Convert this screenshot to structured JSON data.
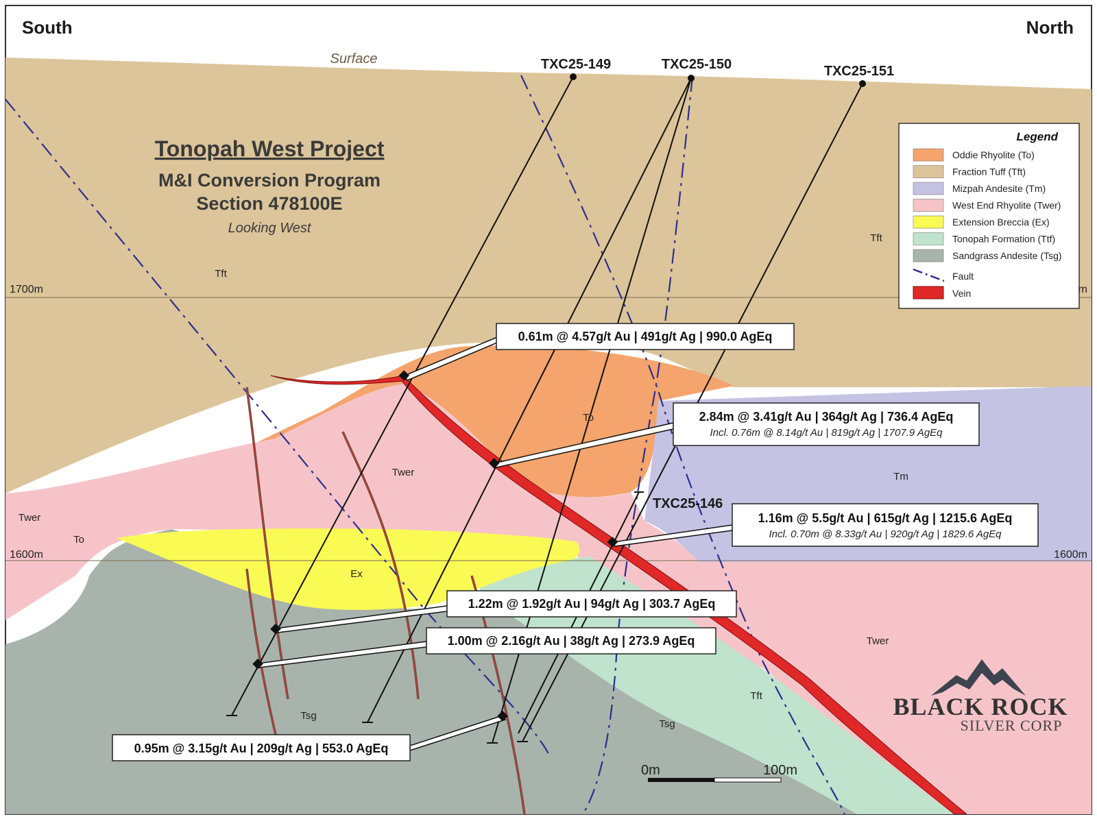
{
  "header": {
    "south": "South",
    "north": "North"
  },
  "surface_label": "Surface",
  "title": {
    "line1": "Tonopah West Project",
    "line2": "M&I Conversion Program",
    "line3": "Section 478100E",
    "line4": "Looking West"
  },
  "elevations": {
    "upper": "1700m",
    "lower": "1600m",
    "lower_right": "1600m",
    "upper_right_partial": "m"
  },
  "drillholes": [
    "TXC25-149",
    "TXC25-150",
    "TXC25-151",
    "TXC25-146"
  ],
  "units": {
    "tft_left": "Tft",
    "tft_right": "Tft",
    "tft_lower": "Tft",
    "to_center": "To",
    "to_left": "To",
    "twer_left": "Twer",
    "twer_center": "Twer",
    "twer_right": "Twer",
    "tm": "Tm",
    "ex": "Ex",
    "tsg_left": "Tsg",
    "tsg_center": "Tsg"
  },
  "callouts": [
    {
      "main": "0.61m @ 4.57g/t Au  |  491g/t  Ag  |  990.0 AgEq",
      "sub": ""
    },
    {
      "main": "2.84m @ 3.41g/t Au  |  364g/t Ag  |  736.4 AgEq",
      "sub": "Incl. 0.76m @ 8.14g/t Au  |  819g/t Ag  |  1707.9 AgEq"
    },
    {
      "main": "1.16m @ 5.5g/t Au  |  615g/t Ag  |  1215.6 AgEq",
      "sub": "Incl. 0.70m @ 8.33g/t Au  |  920g/t Ag  |  1829.6 AgEq"
    },
    {
      "main": "1.22m @ 1.92g/t Au  |  94g/t Ag  |  303.7 AgEq",
      "sub": ""
    },
    {
      "main": "1.00m @ 2.16g/t Au  |  38g/t Ag  |  273.9 AgEq",
      "sub": ""
    },
    {
      "main": "0.95m @ 3.15g/t Au  |  209g/t Ag  |  553.0 AgEq",
      "sub": ""
    }
  ],
  "legend": {
    "title": "Legend",
    "items": [
      {
        "label": "Oddie Rhyolite (To)",
        "color": "#f4a46c"
      },
      {
        "label": "Fraction Tuff (Tft)",
        "color": "#dcc59a"
      },
      {
        "label": "Mizpah Andesite (Tm)",
        "color": "#c5c3e3"
      },
      {
        "label": "West End Rhyolite (Twer)",
        "color": "#f6c4c8"
      },
      {
        "label": "Extension Breccia (Ex)",
        "color": "#fafa55"
      },
      {
        "label": "Tonopah Formation (Ttf)",
        "color": "#bfe3cc"
      },
      {
        "label": "Sandgrass Andesite (Tsg)",
        "color": "#a8b3ac"
      }
    ],
    "fault_label": "Fault",
    "vein_label": "Vein",
    "fault_color": "#2b2f8f",
    "vein_color": "#e02828"
  },
  "scale_bar": {
    "start": "0m",
    "end": "100m"
  },
  "logo": {
    "line1": "BLACK ROCK",
    "line2": "SILVER CORP"
  }
}
